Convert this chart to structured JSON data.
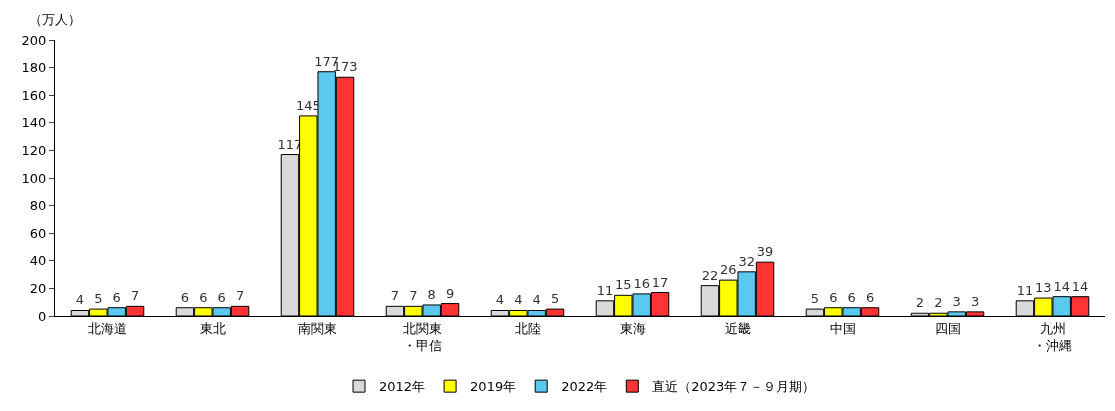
{
  "chart_data": {
    "type": "bar",
    "ylabel": "（万人）",
    "categories": [
      "北海道",
      "東北",
      "南関東",
      "北関東・甲信",
      "北陸",
      "東海",
      "近畿",
      "中国",
      "四国",
      "九州・沖縄"
    ],
    "series": [
      {
        "name": "2012年",
        "color": "#d9d9d9",
        "values": [
          4,
          6,
          117,
          7,
          4,
          11,
          22,
          5,
          2,
          11
        ]
      },
      {
        "name": "2019年",
        "color": "#ffff00",
        "values": [
          5,
          6,
          145,
          7,
          4,
          15,
          26,
          6,
          2,
          13
        ]
      },
      {
        "name": "2022年",
        "color": "#5bc8f0",
        "values": [
          6,
          6,
          177,
          8,
          4,
          16,
          32,
          6,
          3,
          14
        ]
      },
      {
        "name": "直近（2023年７－９月期）",
        "color": "#ff3333",
        "values": [
          7,
          7,
          173,
          9,
          5,
          17,
          39,
          6,
          3,
          14
        ]
      }
    ],
    "ylim": [
      0,
      200
    ],
    "yticks": [
      0,
      20,
      40,
      60,
      80,
      100,
      120,
      140,
      160,
      180,
      200
    ],
    "legend": "bottom",
    "data_labels": true
  }
}
